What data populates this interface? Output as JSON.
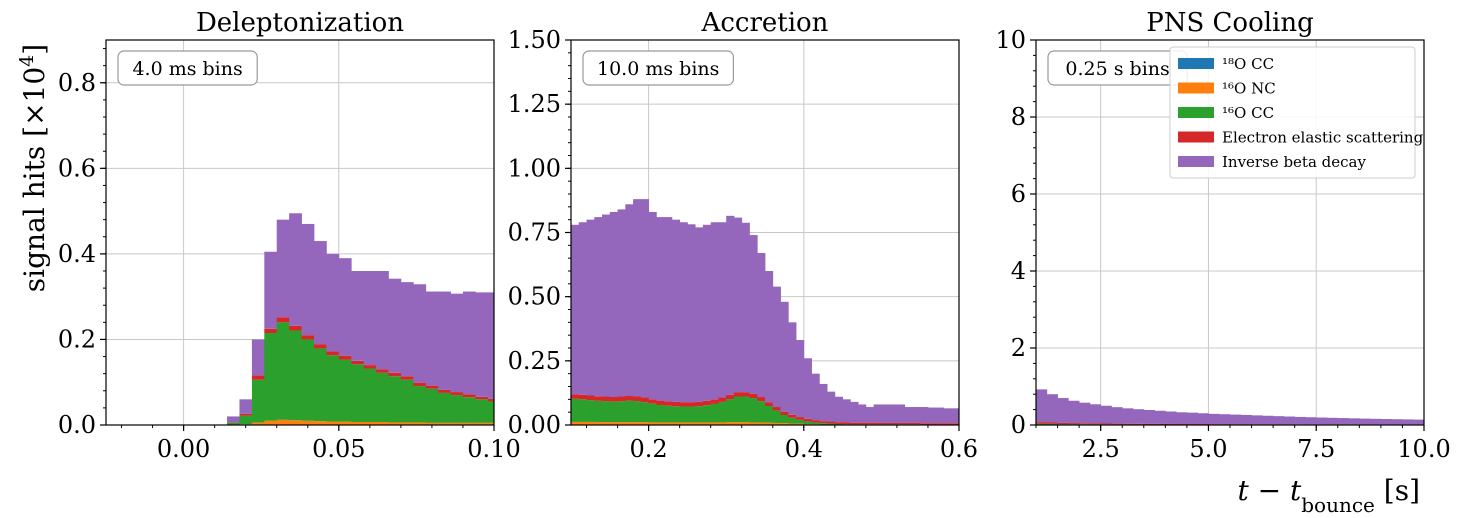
{
  "figure": {
    "ylabel_main": "signal hits [×10",
    "ylabel_exp": "4",
    "ylabel_close": "]",
    "xlabel_main": "t − t",
    "xlabel_sub": "bounce",
    "xlabel_unit": " [s]"
  },
  "legend": {
    "items": [
      {
        "label": "¹⁸O CC",
        "color": "#1f77b4"
      },
      {
        "label": "¹⁶O NC",
        "color": "#ff7f0e"
      },
      {
        "label": "¹⁶O CC",
        "color": "#2ca02c"
      },
      {
        "label": "Electron elastic scattering",
        "color": "#d62728"
      },
      {
        "label": "Inverse beta decay",
        "color": "#9467bd"
      }
    ]
  },
  "chart_data": [
    {
      "type": "bar",
      "stacked": true,
      "title": "Deleptonization",
      "annotation": "4.0 ms bins",
      "xlim": [
        -0.025,
        0.1
      ],
      "ylim": [
        0,
        0.9
      ],
      "xticks": [
        0.0,
        0.05,
        0.1
      ],
      "xtick_labels": [
        "0.00",
        "0.05",
        "0.10"
      ],
      "yticks": [
        0.0,
        0.2,
        0.4,
        0.6,
        0.8
      ],
      "ytick_labels": [
        "0.0",
        "0.2",
        "0.4",
        "0.6",
        "0.8"
      ],
      "grid": true,
      "bin_width": 0.004,
      "x_start": 0.01,
      "series": [
        {
          "name": "¹⁸O CC",
          "values": [
            0,
            0,
            0,
            0,
            0,
            0,
            0,
            0,
            0,
            0,
            0,
            0,
            0,
            0,
            0,
            0,
            0,
            0,
            0,
            0,
            0,
            0,
            0
          ]
        },
        {
          "name": "¹⁶O NC",
          "values": [
            0,
            0.001,
            0.002,
            0.006,
            0.01,
            0.012,
            0.011,
            0.01,
            0.009,
            0.008,
            0.008,
            0.007,
            0.007,
            0.007,
            0.006,
            0.006,
            0.006,
            0.005,
            0.005,
            0.005,
            0.005,
            0.005,
            0.005
          ]
        },
        {
          "name": "¹⁶O CC",
          "values": [
            0,
            0.004,
            0.02,
            0.1,
            0.205,
            0.228,
            0.21,
            0.19,
            0.17,
            0.155,
            0.145,
            0.135,
            0.125,
            0.115,
            0.108,
            0.1,
            0.085,
            0.08,
            0.07,
            0.065,
            0.06,
            0.055,
            0.05
          ]
        },
        {
          "name": "Electron elastic scattering",
          "values": [
            0,
            0.001,
            0.004,
            0.01,
            0.01,
            0.012,
            0.011,
            0.01,
            0.01,
            0.009,
            0.009,
            0.008,
            0.008,
            0.008,
            0.008,
            0.008,
            0.008,
            0.007,
            0.007,
            0.007,
            0.007,
            0.006,
            0.006
          ]
        },
        {
          "name": "Inverse beta decay",
          "values": [
            0.001,
            0.014,
            0.034,
            0.084,
            0.18,
            0.228,
            0.263,
            0.26,
            0.241,
            0.228,
            0.228,
            0.21,
            0.22,
            0.23,
            0.22,
            0.22,
            0.23,
            0.22,
            0.23,
            0.23,
            0.24,
            0.244,
            0.249
          ]
        }
      ]
    },
    {
      "type": "bar",
      "stacked": true,
      "title": "Accretion",
      "annotation": "10.0 ms bins",
      "xlim": [
        0.1,
        0.6
      ],
      "ylim": [
        0,
        1.5
      ],
      "xticks": [
        0.2,
        0.4,
        0.6
      ],
      "xtick_labels": [
        "0.2",
        "0.4",
        "0.6"
      ],
      "yticks": [
        0.0,
        0.25,
        0.5,
        0.75,
        1.0,
        1.25,
        1.5
      ],
      "ytick_labels": [
        "0.00",
        "0.25",
        "0.50",
        "0.75",
        "1.00",
        "1.25",
        "1.50"
      ],
      "grid": true,
      "bin_width": 0.01,
      "x_start": 0.1,
      "series": [
        {
          "name": "¹⁸O CC",
          "values": [
            0,
            0,
            0,
            0,
            0,
            0,
            0,
            0,
            0,
            0,
            0,
            0,
            0,
            0,
            0,
            0,
            0,
            0,
            0,
            0,
            0,
            0,
            0,
            0,
            0,
            0,
            0,
            0,
            0,
            0,
            0,
            0,
            0,
            0,
            0,
            0,
            0,
            0,
            0,
            0,
            0,
            0,
            0,
            0,
            0,
            0,
            0,
            0,
            0,
            0
          ]
        },
        {
          "name": "¹⁶O NC",
          "values": [
            0.012,
            0.012,
            0.012,
            0.011,
            0.011,
            0.011,
            0.011,
            0.011,
            0.011,
            0.011,
            0.01,
            0.01,
            0.01,
            0.01,
            0.01,
            0.01,
            0.01,
            0.01,
            0.01,
            0.01,
            0.011,
            0.011,
            0.011,
            0.01,
            0.01,
            0.009,
            0.008,
            0.007,
            0.006,
            0.005,
            0.004,
            0.003,
            0.002,
            0.002,
            0.001,
            0.001,
            0.001,
            0.001,
            0.001,
            0.001,
            0.001,
            0.001,
            0.001,
            0.001,
            0.001,
            0.001,
            0.001,
            0.001,
            0.001,
            0.001
          ]
        },
        {
          "name": "¹⁶O CC",
          "values": [
            0.09,
            0.088,
            0.085,
            0.083,
            0.082,
            0.08,
            0.082,
            0.084,
            0.082,
            0.078,
            0.073,
            0.068,
            0.065,
            0.063,
            0.062,
            0.062,
            0.063,
            0.067,
            0.072,
            0.08,
            0.09,
            0.1,
            0.1,
            0.095,
            0.083,
            0.065,
            0.048,
            0.032,
            0.022,
            0.015,
            0.01,
            0.007,
            0.005,
            0.004,
            0.003,
            0.002,
            0.002,
            0.002,
            0.002,
            0.002,
            0.002,
            0.002,
            0.002,
            0.002,
            0.002,
            0.001,
            0.001,
            0.001,
            0.001,
            0.001
          ]
        },
        {
          "name": "Electron elastic scattering",
          "values": [
            0.018,
            0.018,
            0.018,
            0.018,
            0.018,
            0.018,
            0.018,
            0.018,
            0.018,
            0.018,
            0.017,
            0.017,
            0.017,
            0.017,
            0.017,
            0.017,
            0.017,
            0.017,
            0.017,
            0.017,
            0.017,
            0.017,
            0.017,
            0.016,
            0.016,
            0.015,
            0.014,
            0.013,
            0.012,
            0.011,
            0.01,
            0.009,
            0.008,
            0.008,
            0.007,
            0.007,
            0.006,
            0.006,
            0.006,
            0.006,
            0.005,
            0.005,
            0.005,
            0.005,
            0.005,
            0.005,
            0.005,
            0.005,
            0.005,
            0.005
          ]
        },
        {
          "name": "Inverse beta decay",
          "values": [
            0.66,
            0.672,
            0.685,
            0.698,
            0.709,
            0.721,
            0.729,
            0.747,
            0.769,
            0.773,
            0.73,
            0.715,
            0.718,
            0.71,
            0.701,
            0.693,
            0.68,
            0.686,
            0.691,
            0.683,
            0.697,
            0.68,
            0.66,
            0.619,
            0.561,
            0.511,
            0.469,
            0.428,
            0.36,
            0.3,
            0.236,
            0.181,
            0.145,
            0.116,
            0.099,
            0.09,
            0.081,
            0.071,
            0.061,
            0.071,
            0.072,
            0.072,
            0.072,
            0.062,
            0.062,
            0.063,
            0.061,
            0.061,
            0.058,
            0.058
          ]
        }
      ]
    },
    {
      "type": "bar",
      "stacked": true,
      "title": "PNS Cooling",
      "annotation": "0.25 s bins",
      "xlim": [
        1.0,
        10.0
      ],
      "ylim": [
        0,
        10
      ],
      "xticks": [
        2.5,
        5.0,
        7.5,
        10.0
      ],
      "xtick_labels": [
        "2.5",
        "5.0",
        "7.5",
        "10.0"
      ],
      "yticks": [
        0,
        2,
        4,
        6,
        8,
        10
      ],
      "ytick_labels": [
        "0",
        "2",
        "4",
        "6",
        "8",
        "10"
      ],
      "grid": true,
      "bin_width": 0.25,
      "x_start": 1.0,
      "series": [
        {
          "name": "¹⁸O CC",
          "values": [
            0,
            0,
            0,
            0,
            0,
            0,
            0,
            0,
            0,
            0,
            0,
            0,
            0,
            0,
            0,
            0,
            0,
            0,
            0,
            0,
            0,
            0,
            0,
            0,
            0,
            0,
            0,
            0,
            0,
            0,
            0,
            0,
            0,
            0,
            0,
            0
          ]
        },
        {
          "name": "¹⁶O NC",
          "values": [
            0.005,
            0.005,
            0.004,
            0.004,
            0.004,
            0.003,
            0.003,
            0.003,
            0.003,
            0.003,
            0.002,
            0.002,
            0.002,
            0.002,
            0.002,
            0.002,
            0.002,
            0.002,
            0.002,
            0.002,
            0.002,
            0.002,
            0.002,
            0.002,
            0.001,
            0.001,
            0.001,
            0.001,
            0.001,
            0.001,
            0.001,
            0.001,
            0.001,
            0.001,
            0.001,
            0.001
          ]
        },
        {
          "name": "¹⁶O CC",
          "values": [
            0.03,
            0.025,
            0.02,
            0.018,
            0.016,
            0.015,
            0.014,
            0.013,
            0.012,
            0.011,
            0.01,
            0.01,
            0.01,
            0.009,
            0.009,
            0.009,
            0.008,
            0.008,
            0.008,
            0.008,
            0.007,
            0.007,
            0.007,
            0.007,
            0.007,
            0.006,
            0.006,
            0.006,
            0.006,
            0.006,
            0.006,
            0.006,
            0.005,
            0.005,
            0.005,
            0.005
          ]
        },
        {
          "name": "Electron elastic scattering",
          "values": [
            0.04,
            0.035,
            0.03,
            0.028,
            0.025,
            0.024,
            0.022,
            0.02,
            0.019,
            0.018,
            0.017,
            0.016,
            0.015,
            0.015,
            0.014,
            0.014,
            0.013,
            0.013,
            0.012,
            0.012,
            0.012,
            0.011,
            0.011,
            0.011,
            0.01,
            0.01,
            0.01,
            0.01,
            0.01,
            0.01,
            0.009,
            0.009,
            0.009,
            0.009,
            0.009,
            0.009
          ]
        },
        {
          "name": "Inverse beta decay",
          "values": [
            0.85,
            0.735,
            0.646,
            0.58,
            0.535,
            0.496,
            0.461,
            0.427,
            0.399,
            0.378,
            0.361,
            0.342,
            0.323,
            0.304,
            0.296,
            0.28,
            0.267,
            0.257,
            0.248,
            0.24,
            0.229,
            0.22,
            0.21,
            0.2,
            0.192,
            0.184,
            0.177,
            0.17,
            0.163,
            0.156,
            0.15,
            0.145,
            0.14,
            0.135,
            0.13,
            0.125
          ]
        }
      ]
    }
  ]
}
